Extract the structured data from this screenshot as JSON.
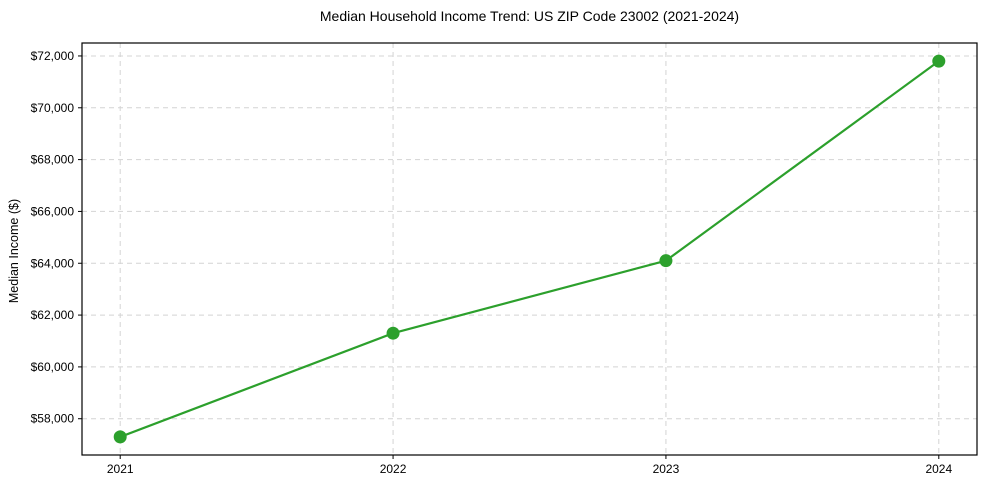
{
  "chart_data": {
    "type": "line",
    "title": "Median Household Income Trend: US ZIP Code 23002 (2021-2024)",
    "xlabel": "",
    "ylabel": "Median Income ($)",
    "x": [
      2021,
      2022,
      2023,
      2024
    ],
    "xtick_labels": [
      "2021",
      "2022",
      "2023",
      "2024"
    ],
    "values": [
      57300,
      61300,
      64100,
      71800
    ],
    "yticks": [
      58000,
      60000,
      62000,
      64000,
      66000,
      68000,
      70000,
      72000
    ],
    "ytick_labels": [
      "$58,000",
      "$60,000",
      "$62,000",
      "$64,000",
      "$66,000",
      "$68,000",
      "$70,000",
      "$72,000"
    ],
    "xlim": [
      2020.86,
      2024.14
    ],
    "ylim": [
      56600,
      72500
    ],
    "grid": true,
    "grid_style": "dashed",
    "legend": "none",
    "colors": {
      "line": "#2ca02c",
      "marker": "#2ca02c",
      "grid": "#d4d4d4",
      "axis": "#000000",
      "text": "#000000",
      "background": "#ffffff"
    }
  }
}
